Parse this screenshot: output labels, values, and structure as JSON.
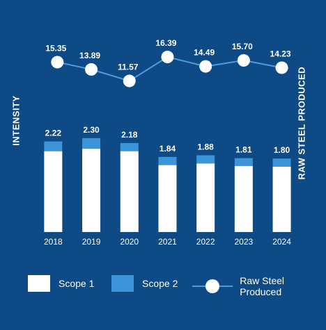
{
  "chart_data": {
    "type": "bar",
    "categories": [
      "2018",
      "2019",
      "2020",
      "2021",
      "2022",
      "2023",
      "2024"
    ],
    "ylabel": "INTENSITY",
    "y2label": "RAW STEEL PRODUCED",
    "series": [
      {
        "name": "Scope 1",
        "type": "bar",
        "stacked": true,
        "values": [
          1.98,
          2.04,
          1.98,
          1.64,
          1.68,
          1.62,
          1.6
        ]
      },
      {
        "name": "Scope 2",
        "type": "bar",
        "stacked": true,
        "values": [
          0.24,
          0.26,
          0.2,
          0.2,
          0.2,
          0.19,
          0.2
        ]
      },
      {
        "name": "Raw Steel Produced",
        "type": "line",
        "axis": "secondary",
        "values": [
          15.35,
          13.89,
          11.57,
          16.39,
          14.49,
          15.7,
          14.23
        ]
      }
    ],
    "totals": [
      "2.22",
      "2.30",
      "2.18",
      "1.84",
      "1.88",
      "1.81",
      "1.80"
    ],
    "line_labels": [
      "15.35",
      "13.89",
      "11.57",
      "16.39",
      "14.49",
      "15.70",
      "14.23"
    ],
    "y_range": [
      0,
      2.45
    ],
    "y2_range": [
      10.8,
      17.3
    ],
    "colors": {
      "background": "#0d4a86",
      "scope1": "#ffffff",
      "scope2": "#3c95d8",
      "line": "#4e9be0"
    },
    "legend": [
      "Scope 1",
      "Scope 2",
      "Raw Steel Produced"
    ],
    "legend_position": "bottom",
    "grid": false
  }
}
